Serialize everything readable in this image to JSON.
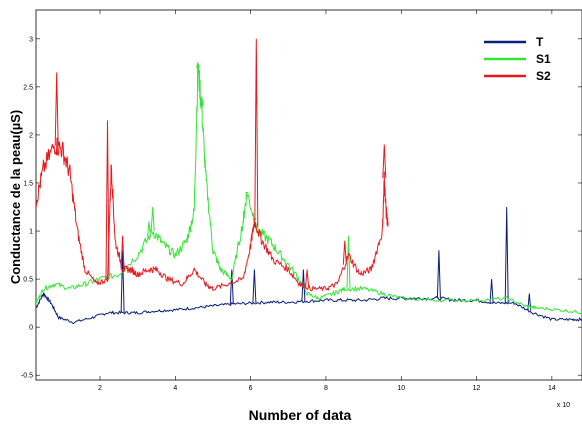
{
  "chart_data": {
    "type": "line",
    "title": "",
    "xlabel": "Number of data",
    "ylabel": "Conductance de la peau(µS)",
    "x_multiplier": "x 10",
    "xlim": [
      0.3,
      14.8
    ],
    "ylim": [
      -0.55,
      3.3
    ],
    "xticks": [
      2,
      4,
      6,
      8,
      10,
      12,
      14
    ],
    "yticks": [
      -0.5,
      0,
      0.5,
      1,
      1.5,
      2,
      2.5,
      3
    ],
    "grid": false,
    "legend_position": "top-right",
    "series": [
      {
        "name": "T",
        "color": "#0a1f7a",
        "points": [
          [
            0.3,
            0.2
          ],
          [
            0.5,
            0.35
          ],
          [
            0.7,
            0.25
          ],
          [
            0.9,
            0.1
          ],
          [
            1.3,
            0.05
          ],
          [
            1.8,
            0.1
          ],
          [
            2.2,
            0.15
          ],
          [
            2.6,
            0.15
          ],
          [
            3.0,
            0.15
          ],
          [
            3.5,
            0.17
          ],
          [
            4.0,
            0.18
          ],
          [
            4.5,
            0.2
          ],
          [
            5.0,
            0.22
          ],
          [
            5.5,
            0.24
          ],
          [
            6.0,
            0.25
          ],
          [
            6.5,
            0.26
          ],
          [
            7.0,
            0.26
          ],
          [
            7.5,
            0.27
          ],
          [
            8.0,
            0.28
          ],
          [
            8.5,
            0.28
          ],
          [
            9.0,
            0.28
          ],
          [
            9.5,
            0.3
          ],
          [
            10.0,
            0.3
          ],
          [
            10.5,
            0.3
          ],
          [
            11.0,
            0.3
          ],
          [
            11.5,
            0.28
          ],
          [
            12.0,
            0.28
          ],
          [
            12.5,
            0.25
          ],
          [
            13.0,
            0.25
          ],
          [
            13.5,
            0.15
          ],
          [
            14.0,
            0.08
          ],
          [
            14.5,
            0.08
          ],
          [
            14.8,
            0.08
          ]
        ],
        "spikes": [
          [
            2.6,
            0.8
          ],
          [
            5.5,
            0.6
          ],
          [
            6.1,
            0.6
          ],
          [
            7.4,
            0.6
          ],
          [
            11.0,
            0.8
          ],
          [
            12.4,
            0.5
          ],
          [
            12.8,
            1.25
          ],
          [
            13.4,
            0.35
          ]
        ]
      },
      {
        "name": "S1",
        "color": "#33e633",
        "points": [
          [
            0.3,
            0.25
          ],
          [
            0.5,
            0.4
          ],
          [
            0.8,
            0.45
          ],
          [
            1.2,
            0.4
          ],
          [
            1.6,
            0.45
          ],
          [
            2.0,
            0.5
          ],
          [
            2.5,
            0.55
          ],
          [
            3.0,
            0.75
          ],
          [
            3.4,
            1.0
          ],
          [
            3.7,
            0.85
          ],
          [
            4.0,
            0.75
          ],
          [
            4.3,
            0.9
          ],
          [
            4.5,
            1.2
          ],
          [
            4.6,
            2.7
          ],
          [
            4.7,
            2.3
          ],
          [
            4.8,
            1.6
          ],
          [
            5.0,
            0.8
          ],
          [
            5.2,
            0.6
          ],
          [
            5.5,
            0.5
          ],
          [
            5.8,
            1.1
          ],
          [
            5.9,
            1.4
          ],
          [
            6.2,
            1.0
          ],
          [
            6.5,
            0.9
          ],
          [
            6.8,
            0.75
          ],
          [
            7.2,
            0.55
          ],
          [
            7.5,
            0.35
          ],
          [
            7.8,
            0.3
          ],
          [
            8.2,
            0.35
          ],
          [
            8.5,
            0.4
          ],
          [
            9.0,
            0.4
          ],
          [
            9.5,
            0.35
          ],
          [
            10.0,
            0.3
          ],
          [
            11.0,
            0.28
          ],
          [
            12.0,
            0.28
          ],
          [
            12.8,
            0.3
          ],
          [
            13.3,
            0.22
          ],
          [
            13.6,
            0.2
          ],
          [
            14.2,
            0.18
          ],
          [
            14.8,
            0.15
          ]
        ],
        "spikes": [
          [
            3.3,
            1.1
          ],
          [
            3.4,
            1.25
          ],
          [
            4.6,
            2.75
          ],
          [
            4.7,
            2.4
          ],
          [
            5.9,
            1.4
          ],
          [
            6.1,
            1.1
          ],
          [
            8.6,
            0.95
          ]
        ]
      },
      {
        "name": "S2",
        "color": "#e8191e",
        "points": [
          [
            0.3,
            1.3
          ],
          [
            0.5,
            1.65
          ],
          [
            0.8,
            1.9
          ],
          [
            1.0,
            1.85
          ],
          [
            1.2,
            1.6
          ],
          [
            1.4,
            1.0
          ],
          [
            1.6,
            0.6
          ],
          [
            1.9,
            0.45
          ],
          [
            2.2,
            0.5
          ],
          [
            2.3,
            1.7
          ],
          [
            2.4,
            0.9
          ],
          [
            2.6,
            0.6
          ],
          [
            2.8,
            0.6
          ],
          [
            3.0,
            0.55
          ],
          [
            3.3,
            0.6
          ],
          [
            3.5,
            0.6
          ],
          [
            3.8,
            0.5
          ],
          [
            4.2,
            0.45
          ],
          [
            4.5,
            0.6
          ],
          [
            4.8,
            0.45
          ],
          [
            5.0,
            0.4
          ],
          [
            5.4,
            0.45
          ],
          [
            5.8,
            0.5
          ],
          [
            6.0,
            0.85
          ],
          [
            6.1,
            1.1
          ],
          [
            6.3,
            0.9
          ],
          [
            6.6,
            0.7
          ],
          [
            7.0,
            0.6
          ],
          [
            7.3,
            0.45
          ],
          [
            7.6,
            0.4
          ],
          [
            8.0,
            0.4
          ],
          [
            8.3,
            0.45
          ],
          [
            8.6,
            0.75
          ],
          [
            8.9,
            0.55
          ],
          [
            9.2,
            0.6
          ],
          [
            9.5,
            1.0
          ],
          [
            9.55,
            1.55
          ],
          [
            9.6,
            1.2
          ],
          [
            9.65,
            1.05
          ]
        ],
        "spikes": [
          [
            0.85,
            2.65
          ],
          [
            2.2,
            2.15
          ],
          [
            2.6,
            0.95
          ],
          [
            6.15,
            3.0
          ],
          [
            7.5,
            0.6
          ],
          [
            8.5,
            0.9
          ],
          [
            9.55,
            1.9
          ]
        ]
      }
    ]
  }
}
